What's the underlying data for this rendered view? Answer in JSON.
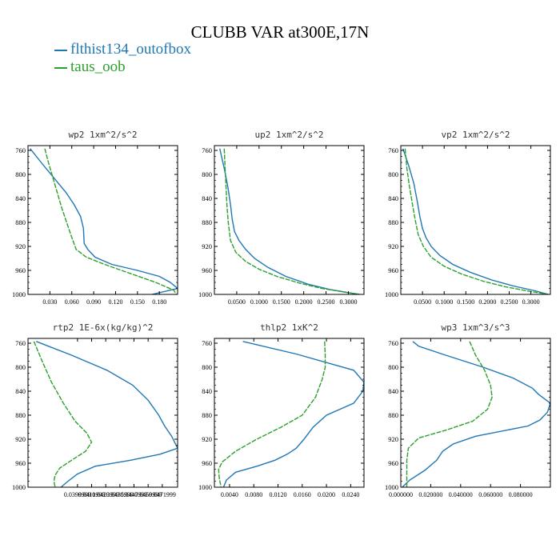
{
  "figure": {
    "title": "CLUBB VAR at300E,17N",
    "legend": [
      {
        "label": "flthist134_outofbox",
        "color": "#1f77b4"
      },
      {
        "label": "taus_oob",
        "color": "#2ca02c"
      }
    ]
  },
  "chart_data": [
    {
      "type": "line",
      "title": "wp2   1xm^2/s^2",
      "xlim": [
        0.0,
        0.205
      ],
      "ylim": [
        1000,
        752
      ],
      "y_inverted": true,
      "xticks": [
        0.03,
        0.06,
        0.09,
        0.12,
        0.15,
        0.18
      ],
      "xtick_labels": [
        "0.030",
        "0.060",
        "0.090",
        "0.120",
        "0.150",
        "0.180"
      ],
      "yticks": [
        760,
        800,
        840,
        880,
        920,
        960,
        1000
      ],
      "series": [
        {
          "name": "flthist134_outofbox",
          "color": "#1f77b4",
          "x": [
            0.003,
            0.018,
            0.035,
            0.052,
            0.063,
            0.072,
            0.076,
            0.077,
            0.082,
            0.092,
            0.115,
            0.15,
            0.18,
            0.195,
            0.205,
            0.17
          ],
          "y": [
            757,
            780,
            805,
            830,
            850,
            870,
            890,
            915,
            925,
            938,
            950,
            960,
            970,
            980,
            990,
            1000
          ]
        },
        {
          "name": "taus_oob",
          "color": "#2ca02c",
          "x": [
            0.023,
            0.028,
            0.034,
            0.04,
            0.046,
            0.053,
            0.06,
            0.066,
            0.08,
            0.105,
            0.14,
            0.175,
            0.2,
            0.203
          ],
          "y": [
            757,
            780,
            805,
            830,
            855,
            880,
            905,
            925,
            938,
            950,
            965,
            980,
            993,
            1000
          ]
        }
      ]
    },
    {
      "type": "line",
      "title": "up2   1xm^2/s^2",
      "xlim": [
        0.0,
        0.335
      ],
      "ylim": [
        1000,
        752
      ],
      "y_inverted": true,
      "xticks": [
        0.05,
        0.1,
        0.15,
        0.2,
        0.25,
        0.3
      ],
      "xtick_labels": [
        "0.0500",
        "0.1000",
        "0.1500",
        "0.2000",
        "0.2500",
        "0.3000"
      ],
      "yticks": [
        760,
        800,
        840,
        880,
        920,
        960,
        1000
      ],
      "series": [
        {
          "name": "flthist134_outofbox",
          "color": "#1f77b4",
          "x": [
            0.012,
            0.022,
            0.03,
            0.036,
            0.04,
            0.045,
            0.055,
            0.07,
            0.09,
            0.12,
            0.16,
            0.21,
            0.26,
            0.3,
            0.325
          ],
          "y": [
            757,
            790,
            820,
            850,
            875,
            895,
            910,
            925,
            940,
            955,
            970,
            983,
            992,
            997,
            1000
          ]
        },
        {
          "name": "taus_oob",
          "color": "#2ca02c",
          "x": [
            0.022,
            0.024,
            0.026,
            0.028,
            0.031,
            0.036,
            0.048,
            0.07,
            0.1,
            0.14,
            0.19,
            0.24,
            0.29,
            0.325
          ],
          "y": [
            757,
            790,
            820,
            850,
            880,
            910,
            930,
            945,
            958,
            970,
            981,
            990,
            996,
            1000
          ]
        }
      ]
    },
    {
      "type": "line",
      "title": "vp2   1xm^2/s^2",
      "xlim": [
        0.0,
        0.345
      ],
      "ylim": [
        1000,
        752
      ],
      "y_inverted": true,
      "xticks": [
        0.05,
        0.1,
        0.15,
        0.2,
        0.25,
        0.3
      ],
      "xtick_labels": [
        "0.0500",
        "0.1000",
        "0.1500",
        "0.2000",
        "0.2500",
        "0.3000"
      ],
      "yticks": [
        760,
        800,
        840,
        880,
        920,
        960,
        1000
      ],
      "series": [
        {
          "name": "flthist134_outofbox",
          "color": "#1f77b4",
          "x": [
            0.005,
            0.018,
            0.03,
            0.038,
            0.044,
            0.05,
            0.058,
            0.07,
            0.09,
            0.12,
            0.16,
            0.21,
            0.26,
            0.31,
            0.34
          ],
          "y": [
            757,
            785,
            815,
            845,
            870,
            890,
            905,
            920,
            935,
            950,
            963,
            976,
            986,
            994,
            1000
          ]
        },
        {
          "name": "taus_oob",
          "color": "#2ca02c",
          "x": [
            0.01,
            0.014,
            0.02,
            0.027,
            0.033,
            0.04,
            0.052,
            0.07,
            0.1,
            0.14,
            0.19,
            0.24,
            0.29,
            0.34
          ],
          "y": [
            757,
            790,
            820,
            850,
            875,
            900,
            920,
            938,
            953,
            966,
            978,
            987,
            994,
            1000
          ]
        }
      ]
    },
    {
      "type": "line",
      "title": "rtp2   1E-6x(kg/kg)^2",
      "xlim": [
        0.0358,
        0.0485
      ],
      "ylim": [
        1000,
        752
      ],
      "y_inverted": true,
      "xticks": [
        0.0399999,
        0.0411999,
        0.0423999,
        0.0435999,
        0.0447999,
        0.0459999,
        0.0471999
      ],
      "xtick_labels": [
        "0.0399999",
        "0.0411999",
        "0.0423999",
        "0.0435999",
        "0.0447999",
        "0.0459999",
        "0.0471999"
      ],
      "yticks": [
        760,
        800,
        840,
        880,
        920,
        960,
        1000
      ],
      "series": [
        {
          "name": "flthist134_outofbox",
          "color": "#1f77b4",
          "x": [
            0.0365,
            0.0395,
            0.0425,
            0.0447,
            0.046,
            0.0469,
            0.0474,
            0.048,
            0.0485,
            0.047,
            0.0445,
            0.0415,
            0.04,
            0.0392,
            0.0386
          ],
          "y": [
            757,
            780,
            805,
            830,
            855,
            880,
            898,
            915,
            935,
            945,
            955,
            965,
            978,
            990,
            1000
          ]
        },
        {
          "name": "taus_oob",
          "color": "#2ca02c",
          "x": [
            0.0363,
            0.037,
            0.0378,
            0.0388,
            0.0398,
            0.0408,
            0.0412,
            0.0407,
            0.0395,
            0.0385,
            0.0381,
            0.038,
            0.0381
          ],
          "y": [
            757,
            790,
            825,
            860,
            890,
            910,
            925,
            940,
            955,
            968,
            980,
            990,
            1000
          ]
        }
      ]
    },
    {
      "type": "line",
      "title": "thlp2   1xK^2",
      "xlim": [
        0.0015,
        0.0262
      ],
      "ylim": [
        1000,
        752
      ],
      "y_inverted": true,
      "xticks": [
        0.004,
        0.008,
        0.012,
        0.016,
        0.02,
        0.024
      ],
      "xtick_labels": [
        "0.0040",
        "0.0080",
        "0.0120",
        "0.0160",
        "0.0200",
        "0.0240"
      ],
      "yticks": [
        760,
        800,
        840,
        880,
        920,
        960,
        1000
      ],
      "series": [
        {
          "name": "flthist134_outofbox",
          "color": "#1f77b4",
          "x": [
            0.0062,
            0.015,
            0.0245,
            0.0262,
            0.026,
            0.0245,
            0.02,
            0.0178,
            0.0163,
            0.015,
            0.0135,
            0.0115,
            0.0085,
            0.005,
            0.0035,
            0.003
          ],
          "y": [
            757,
            778,
            805,
            825,
            840,
            860,
            880,
            900,
            920,
            935,
            945,
            955,
            965,
            975,
            988,
            1000
          ]
        },
        {
          "name": "taus_oob",
          "color": "#2ca02c",
          "x": [
            0.0197,
            0.0198,
            0.0198,
            0.0193,
            0.0182,
            0.016,
            0.0125,
            0.0085,
            0.005,
            0.0028,
            0.0022,
            0.0023,
            0.0026
          ],
          "y": [
            757,
            780,
            800,
            820,
            850,
            880,
            900,
            920,
            940,
            958,
            970,
            985,
            1000
          ]
        }
      ]
    },
    {
      "type": "line",
      "title": "wp3   1xm^3/s^3",
      "xlim": [
        0.0,
        0.1
      ],
      "ylim": [
        1000,
        752
      ],
      "y_inverted": true,
      "xticks": [
        0.0,
        0.02,
        0.04,
        0.06,
        0.08
      ],
      "xtick_labels": [
        "0.000000",
        "0.020000",
        "0.040000",
        "0.060000",
        "0.080000"
      ],
      "yticks": [
        760,
        800,
        840,
        880,
        920,
        960,
        1000
      ],
      "series": [
        {
          "name": "flthist134_outofbox",
          "color": "#1f77b4",
          "x": [
            0.008,
            0.012,
            0.03,
            0.055,
            0.075,
            0.088,
            0.092,
            0.1,
            0.098,
            0.093,
            0.085,
            0.05,
            0.035,
            0.028,
            0.024,
            0.016,
            0.006,
            0.001
          ],
          "y": [
            757,
            765,
            780,
            800,
            818,
            835,
            845,
            860,
            875,
            888,
            898,
            915,
            928,
            940,
            955,
            972,
            988,
            1000
          ]
        },
        {
          "name": "taus_oob",
          "color": "#2ca02c",
          "x": [
            0.046,
            0.05,
            0.056,
            0.06,
            0.061,
            0.058,
            0.048,
            0.03,
            0.012,
            0.005,
            0.004,
            0.004,
            0.004
          ],
          "y": [
            757,
            780,
            805,
            830,
            850,
            870,
            890,
            905,
            918,
            935,
            955,
            975,
            1000
          ]
        }
      ]
    }
  ]
}
